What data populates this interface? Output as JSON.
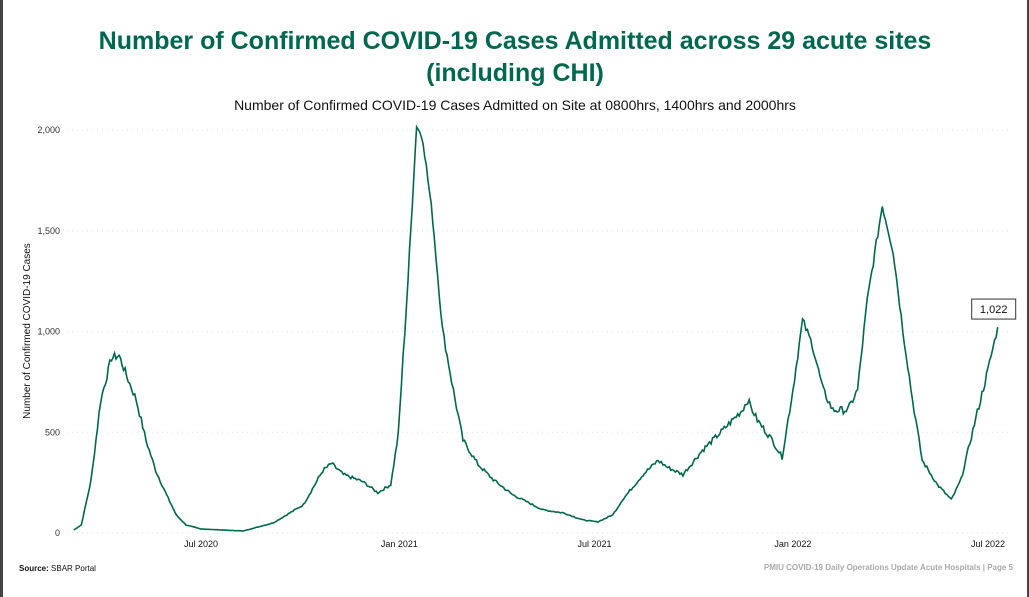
{
  "title_line1": "Number of Confirmed COVID-19 Cases Admitted across 29 acute sites",
  "title_line2": "(including CHI)",
  "subtitle": "Number of Confirmed COVID-19 Cases Admitted on Site at 0800hrs, 1400hrs and 2000hrs",
  "footer": {
    "source_label": "Source:",
    "source": "SBAR Portal",
    "right": "PMIU COVID-19 Daily Operations Update Acute Hospitals |  Page 5"
  },
  "colors": {
    "line": "#00684f",
    "title": "#00684f"
  },
  "chart_data": {
    "type": "line",
    "ylabel": "Number of Confirmed COVID-19 Cases",
    "ylim": [
      0,
      2000
    ],
    "yticks": [
      {
        "v": 0,
        "label": "0"
      },
      {
        "v": 500,
        "label": "500"
      },
      {
        "v": 1000,
        "label": "1,000"
      },
      {
        "v": 1500,
        "label": "1,500"
      },
      {
        "v": 2000,
        "label": "2,000"
      }
    ],
    "xticks": [
      {
        "d": "2020-07-01",
        "label": "Jul 2020"
      },
      {
        "d": "2021-01-01",
        "label": "Jan 2021"
      },
      {
        "d": "2021-07-01",
        "label": "Jul 2021"
      },
      {
        "d": "2022-01-01",
        "label": "Jan 2022"
      },
      {
        "d": "2022-07-01",
        "label": "Jul 2022"
      }
    ],
    "grid": "horizontal-dotted",
    "last_value_label": "1,022",
    "series": [
      {
        "name": "Confirmed cases admitted",
        "points": [
          [
            "2020-03-05",
            15
          ],
          [
            "2020-03-12",
            40
          ],
          [
            "2020-03-21",
            260
          ],
          [
            "2020-03-30",
            660
          ],
          [
            "2020-04-09",
            870
          ],
          [
            "2020-04-16",
            880
          ],
          [
            "2020-04-23",
            780
          ],
          [
            "2020-05-02",
            660
          ],
          [
            "2020-05-11",
            460
          ],
          [
            "2020-05-20",
            310
          ],
          [
            "2020-05-30",
            190
          ],
          [
            "2020-06-08",
            90
          ],
          [
            "2020-06-17",
            40
          ],
          [
            "2020-07-01",
            20
          ],
          [
            "2020-08-09",
            10
          ],
          [
            "2020-09-06",
            50
          ],
          [
            "2020-10-04",
            140
          ],
          [
            "2020-10-22",
            310
          ],
          [
            "2020-10-30",
            345
          ],
          [
            "2020-11-10",
            290
          ],
          [
            "2020-11-28",
            255
          ],
          [
            "2020-12-12",
            200
          ],
          [
            "2020-12-24",
            240
          ],
          [
            "2020-12-31",
            490
          ],
          [
            "2021-01-09",
            1255
          ],
          [
            "2021-01-17",
            2025
          ],
          [
            "2021-01-23",
            1950
          ],
          [
            "2021-02-01",
            1555
          ],
          [
            "2021-02-10",
            1010
          ],
          [
            "2021-02-20",
            710
          ],
          [
            "2021-03-01",
            460
          ],
          [
            "2021-03-15",
            340
          ],
          [
            "2021-03-29",
            265
          ],
          [
            "2021-04-16",
            190
          ],
          [
            "2021-05-14",
            115
          ],
          [
            "2021-06-02",
            100
          ],
          [
            "2021-06-20",
            65
          ],
          [
            "2021-07-04",
            55
          ],
          [
            "2021-07-18",
            90
          ],
          [
            "2021-07-27",
            165
          ],
          [
            "2021-08-15",
            290
          ],
          [
            "2021-08-29",
            360
          ],
          [
            "2021-09-07",
            325
          ],
          [
            "2021-09-21",
            290
          ],
          [
            "2021-10-09",
            410
          ],
          [
            "2021-10-28",
            510
          ],
          [
            "2021-11-15",
            610
          ],
          [
            "2021-11-20",
            660
          ],
          [
            "2021-11-29",
            560
          ],
          [
            "2021-12-13",
            460
          ],
          [
            "2021-12-22",
            375
          ],
          [
            "2022-01-01",
            710
          ],
          [
            "2022-01-10",
            1055
          ],
          [
            "2022-01-19",
            935
          ],
          [
            "2022-01-29",
            710
          ],
          [
            "2022-02-07",
            610
          ],
          [
            "2022-02-21",
            610
          ],
          [
            "2022-03-02",
            710
          ],
          [
            "2022-03-11",
            1155
          ],
          [
            "2022-03-25",
            1625
          ],
          [
            "2022-04-04",
            1400
          ],
          [
            "2022-04-13",
            1010
          ],
          [
            "2022-04-22",
            660
          ],
          [
            "2022-05-01",
            360
          ],
          [
            "2022-05-15",
            240
          ],
          [
            "2022-05-28",
            165
          ],
          [
            "2022-06-06",
            265
          ],
          [
            "2022-06-17",
            510
          ],
          [
            "2022-07-01",
            810
          ],
          [
            "2022-07-10",
            1022
          ]
        ]
      }
    ]
  }
}
